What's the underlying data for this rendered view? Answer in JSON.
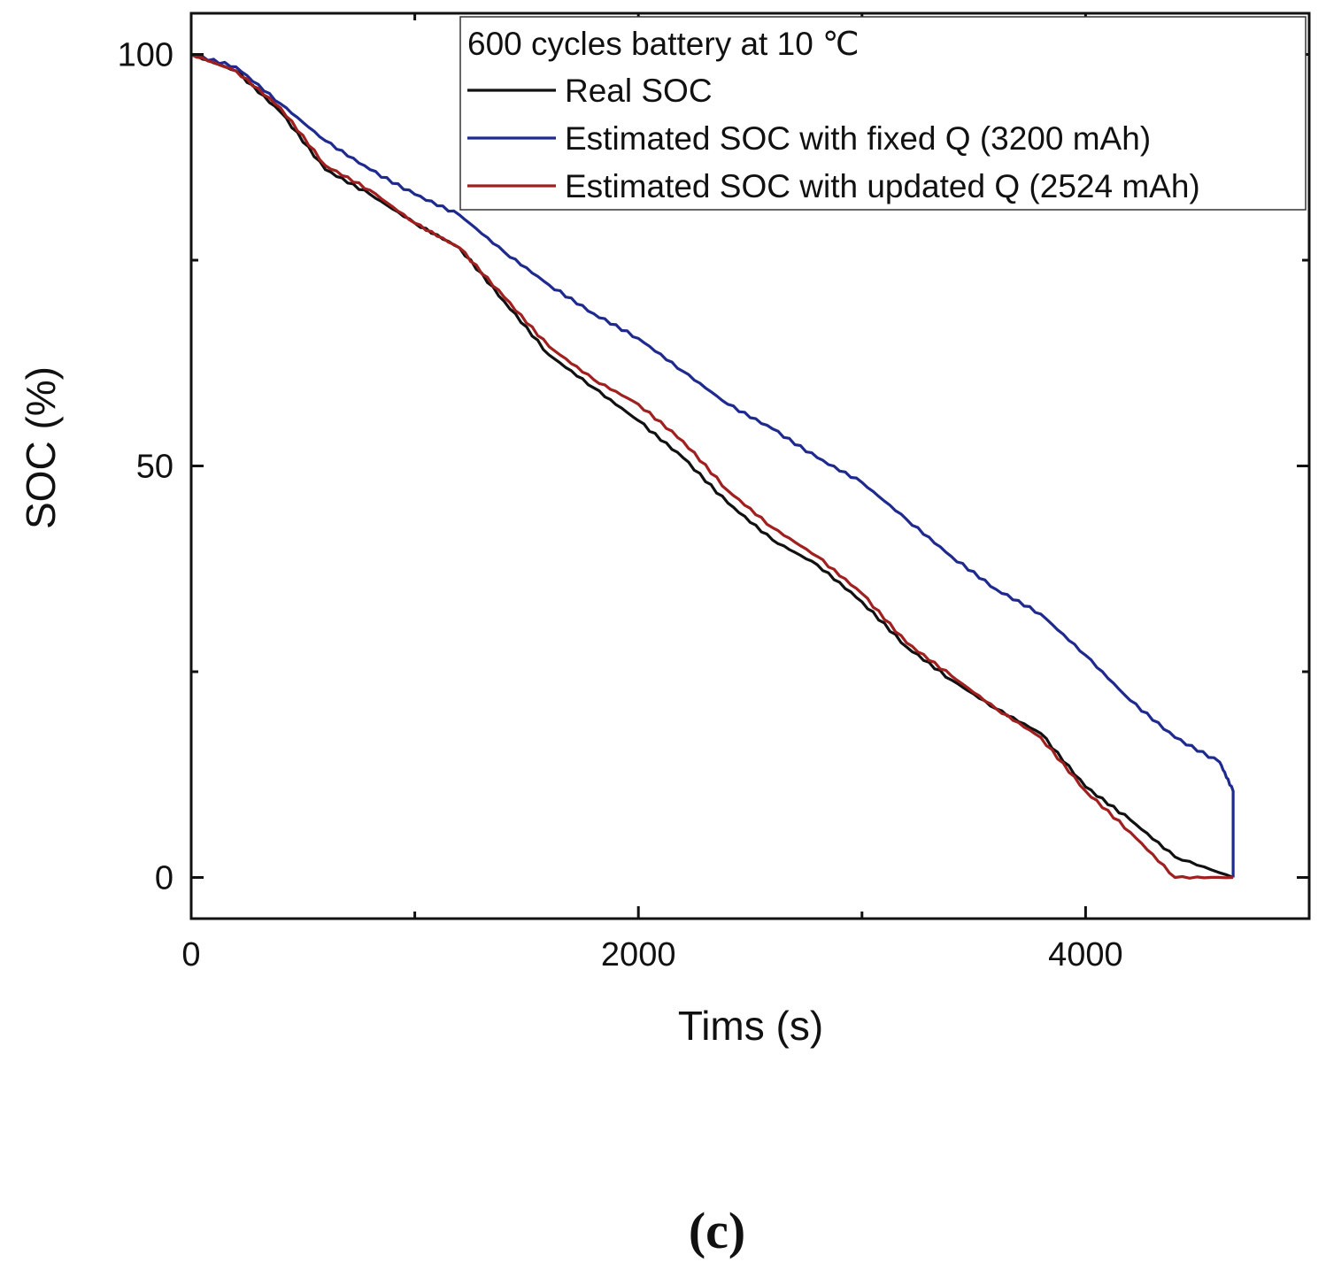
{
  "chart_data": {
    "type": "line",
    "title": "600 cycles battery at 10 ℃",
    "xlabel": "Tims (s)",
    "ylabel": "SOC (%)",
    "xlim": [
      0,
      5000
    ],
    "ylim": [
      -5,
      105
    ],
    "x_ticks": [
      0,
      2000,
      4000
    ],
    "x_minor_ticks": [
      1000,
      3000,
      5000
    ],
    "y_ticks": [
      0,
      50,
      100
    ],
    "y_minor_ticks": [
      25,
      75
    ],
    "legend_position": "top-right",
    "series": [
      {
        "name": "Real SOC",
        "color": "#111111",
        "points": [
          [
            0,
            100
          ],
          [
            200,
            98
          ],
          [
            400,
            93
          ],
          [
            600,
            86
          ],
          [
            800,
            83
          ],
          [
            1000,
            79.5
          ],
          [
            1200,
            76.5
          ],
          [
            1400,
            70
          ],
          [
            1600,
            63.5
          ],
          [
            1800,
            59.5
          ],
          [
            2000,
            55.5
          ],
          [
            2200,
            51
          ],
          [
            2400,
            45.5
          ],
          [
            2600,
            41
          ],
          [
            2800,
            38
          ],
          [
            3000,
            33.5
          ],
          [
            3200,
            28
          ],
          [
            3400,
            24
          ],
          [
            3600,
            20.5
          ],
          [
            3800,
            17.5
          ],
          [
            4000,
            11
          ],
          [
            4200,
            7
          ],
          [
            4400,
            2.5
          ],
          [
            4660,
            0
          ]
        ]
      },
      {
        "name": "Estimated SOC with fixed Q (3200 mAh)",
        "color": "#1f2a8f",
        "points": [
          [
            0,
            100
          ],
          [
            200,
            98.5
          ],
          [
            400,
            94
          ],
          [
            600,
            89.5
          ],
          [
            800,
            86
          ],
          [
            1000,
            83
          ],
          [
            1200,
            80.5
          ],
          [
            1400,
            76
          ],
          [
            1600,
            72
          ],
          [
            1800,
            68.5
          ],
          [
            2000,
            65.5
          ],
          [
            2200,
            61.5
          ],
          [
            2400,
            57.5
          ],
          [
            2600,
            54.5
          ],
          [
            2800,
            51
          ],
          [
            3000,
            48
          ],
          [
            3200,
            43.5
          ],
          [
            3400,
            39
          ],
          [
            3600,
            35
          ],
          [
            3800,
            32
          ],
          [
            4000,
            27
          ],
          [
            4200,
            21.5
          ],
          [
            4400,
            17
          ],
          [
            4600,
            14
          ],
          [
            4660,
            10.5
          ],
          [
            4660,
            0
          ]
        ]
      },
      {
        "name": "Estimated SOC with updated Q (2524 mAh)",
        "color": "#a0201f",
        "points": [
          [
            0,
            100
          ],
          [
            200,
            98
          ],
          [
            400,
            93.5
          ],
          [
            600,
            86.5
          ],
          [
            800,
            83.5
          ],
          [
            1000,
            79.5
          ],
          [
            1200,
            76.5
          ],
          [
            1400,
            70.5
          ],
          [
            1600,
            64.5
          ],
          [
            1800,
            60.5
          ],
          [
            2000,
            57.5
          ],
          [
            2200,
            53
          ],
          [
            2400,
            47
          ],
          [
            2600,
            42.5
          ],
          [
            2800,
            39
          ],
          [
            3000,
            34.5
          ],
          [
            3200,
            28.5
          ],
          [
            3400,
            24.5
          ],
          [
            3600,
            20.5
          ],
          [
            3800,
            17
          ],
          [
            4000,
            10.5
          ],
          [
            4200,
            5.5
          ],
          [
            4400,
            0
          ],
          [
            4660,
            0
          ]
        ]
      }
    ],
    "caption": "(c)"
  }
}
